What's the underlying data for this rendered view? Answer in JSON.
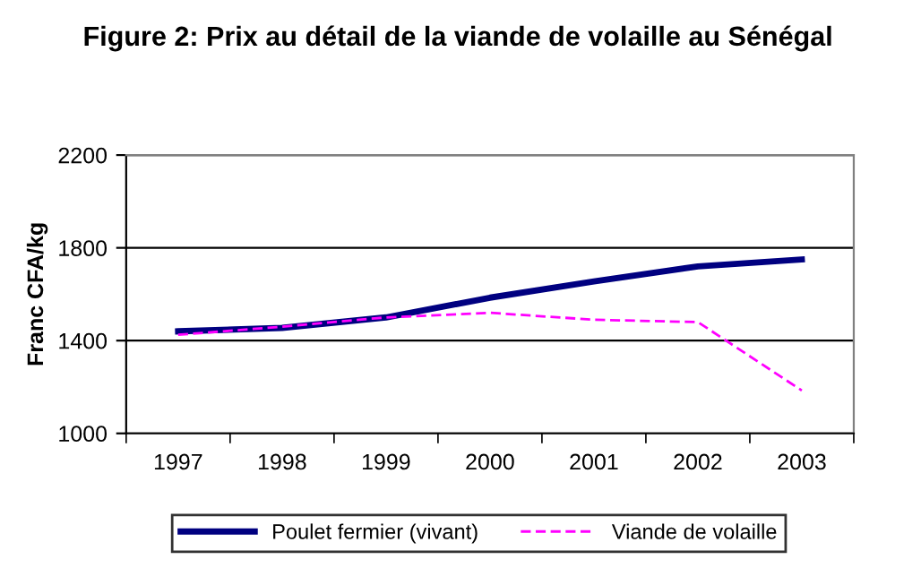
{
  "chart_data": {
    "type": "line",
    "title": "Figure 2: Prix au détail de la viande de volaille au Sénégal",
    "ylabel": "Franc CFA/kg",
    "categories": [
      "1997",
      "1998",
      "1999",
      "2000",
      "2001",
      "2002",
      "2003"
    ],
    "series": [
      {
        "name": "Poulet fermier (vivant)",
        "color": "#000080",
        "line_style": "solid",
        "values": [
          1440,
          1455,
          1500,
          1585,
          1655,
          1720,
          1750
        ]
      },
      {
        "name": "Viande de volaille",
        "color": "#ff00ff",
        "line_style": "dashed",
        "values": [
          1425,
          1460,
          1500,
          1520,
          1490,
          1480,
          1185
        ]
      }
    ],
    "ylim": [
      1000,
      2200
    ],
    "yticks": [
      1000,
      1400,
      1800,
      2200
    ],
    "grid": "y",
    "legend": "bottom",
    "marker": "none"
  }
}
